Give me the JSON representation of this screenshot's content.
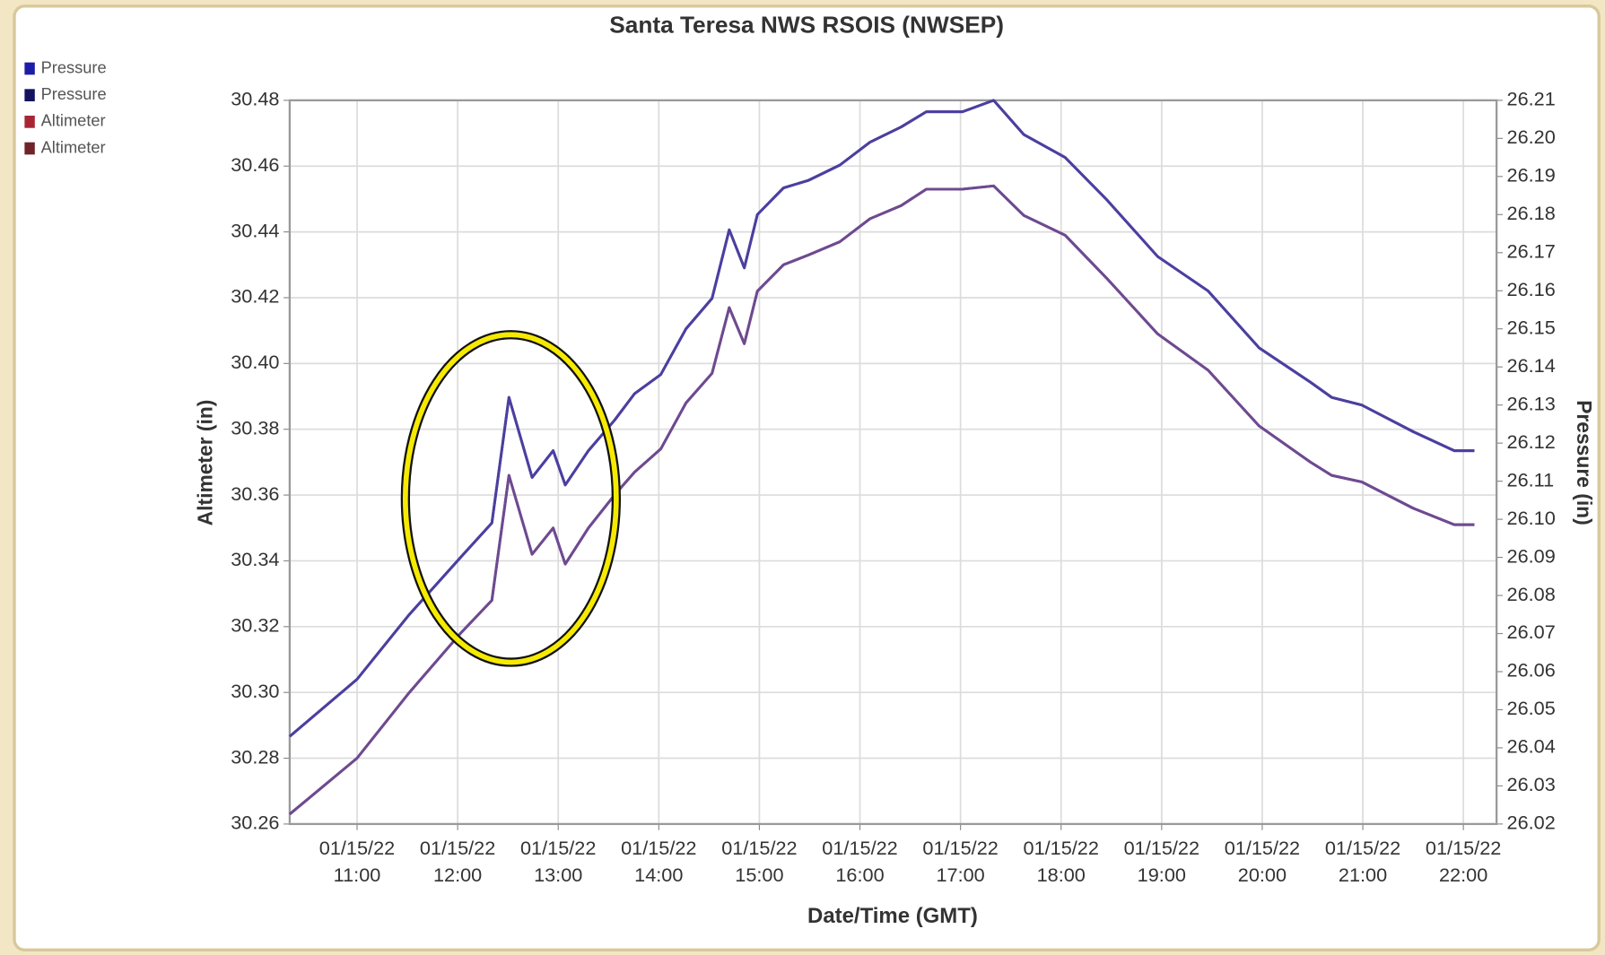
{
  "chart_data": {
    "type": "line",
    "title": "Santa Teresa NWS RSOIS (NWSEP)",
    "x_label": "Date/Time (GMT)",
    "y_label": "Altimeter (in)",
    "y2_label": "Pressure (in)",
    "x": [
      10.33,
      11.0,
      11.52,
      12.03,
      12.34,
      12.51,
      12.74,
      12.95,
      13.07,
      13.3,
      13.56,
      13.76,
      14.02,
      14.27,
      14.53,
      14.7,
      14.85,
      14.98,
      15.24,
      15.49,
      15.8,
      16.1,
      16.41,
      16.66,
      17.02,
      17.33,
      17.63,
      18.04,
      18.45,
      18.96,
      19.46,
      19.97,
      20.48,
      20.69,
      20.99,
      21.5,
      21.91,
      22.11
    ],
    "series": [
      {
        "name": "Pressure",
        "color": "#1c1ca8",
        "line_color": "#4b3fa0",
        "axis": "y2",
        "values": [
          26.043,
          26.058,
          26.075,
          26.09,
          26.099,
          26.132,
          26.111,
          26.118,
          26.109,
          26.118,
          26.126,
          26.133,
          26.138,
          26.15,
          26.158,
          26.176,
          26.166,
          26.18,
          26.187,
          26.189,
          26.193,
          26.199,
          26.203,
          26.207,
          26.207,
          26.21,
          26.201,
          26.195,
          26.184,
          26.169,
          26.16,
          26.145,
          26.136,
          26.132,
          26.13,
          26.123,
          26.118,
          26.118
        ]
      },
      {
        "name": "Pressure",
        "color": "#14145e",
        "line_color": "#4b3fa0",
        "axis": "y2",
        "values": [
          26.043,
          26.058,
          26.075,
          26.09,
          26.099,
          26.132,
          26.111,
          26.118,
          26.109,
          26.118,
          26.126,
          26.133,
          26.138,
          26.15,
          26.158,
          26.176,
          26.166,
          26.18,
          26.187,
          26.189,
          26.193,
          26.199,
          26.203,
          26.207,
          26.207,
          26.21,
          26.201,
          26.195,
          26.184,
          26.169,
          26.16,
          26.145,
          26.136,
          26.132,
          26.13,
          26.123,
          26.118,
          26.118
        ]
      },
      {
        "name": "Altimeter",
        "color": "#a82634",
        "line_color": "#6e4a90",
        "axis": "y",
        "values": [
          30.263,
          30.28,
          30.3,
          30.318,
          30.328,
          30.366,
          30.342,
          30.35,
          30.339,
          30.35,
          30.36,
          30.367,
          30.374,
          30.388,
          30.397,
          30.417,
          30.406,
          30.422,
          30.43,
          30.433,
          30.437,
          30.444,
          30.448,
          30.453,
          30.453,
          30.454,
          30.445,
          30.439,
          30.426,
          30.409,
          30.398,
          30.381,
          30.37,
          30.366,
          30.364,
          30.356,
          30.351,
          30.351
        ]
      },
      {
        "name": "Altimeter",
        "color": "#70242a",
        "line_color": "#6e4a90",
        "axis": "y",
        "values": [
          30.263,
          30.28,
          30.3,
          30.318,
          30.328,
          30.366,
          30.342,
          30.35,
          30.339,
          30.35,
          30.36,
          30.367,
          30.374,
          30.388,
          30.397,
          30.417,
          30.406,
          30.422,
          30.43,
          30.433,
          30.437,
          30.444,
          30.448,
          30.453,
          30.453,
          30.454,
          30.445,
          30.439,
          30.426,
          30.409,
          30.398,
          30.381,
          30.37,
          30.366,
          30.364,
          30.356,
          30.351,
          30.351
        ]
      }
    ],
    "xlim": [
      10.33,
      22.33
    ],
    "xticks": [
      {
        "value": 11,
        "label": "01/15/22 11:00"
      },
      {
        "value": 12,
        "label": "01/15/22 12:00"
      },
      {
        "value": 13,
        "label": "01/15/22 13:00"
      },
      {
        "value": 14,
        "label": "01/15/22 14:00"
      },
      {
        "value": 15,
        "label": "01/15/22 15:00"
      },
      {
        "value": 16,
        "label": "01/15/22 16:00"
      },
      {
        "value": 17,
        "label": "01/15/22 17:00"
      },
      {
        "value": 18,
        "label": "01/15/22 18:00"
      },
      {
        "value": 19,
        "label": "01/15/22 19:00"
      },
      {
        "value": 20,
        "label": "01/15/22 20:00"
      },
      {
        "value": 21,
        "label": "01/15/22 21:00"
      },
      {
        "value": 22,
        "label": "01/15/22 22:00"
      }
    ],
    "ylim": [
      30.26,
      30.48
    ],
    "yticks": [
      30.26,
      30.28,
      {
        "value": 30.3,
        "label": "30.30"
      },
      30.32,
      30.34,
      30.36,
      30.38,
      {
        "value": 30.4,
        "label": "30.40"
      },
      30.42,
      30.44,
      30.46,
      30.48
    ],
    "y2lim": [
      26.02,
      26.21
    ],
    "y2ticks": [
      26.02,
      26.03,
      26.04,
      26.05,
      26.06,
      26.07,
      26.08,
      26.09,
      {
        "value": 26.1,
        "label": "26.10"
      },
      26.11,
      26.12,
      26.13,
      26.14,
      26.15,
      26.16,
      26.17,
      26.18,
      26.19,
      {
        "value": 26.2,
        "label": "26.20"
      },
      26.21
    ],
    "grid": true,
    "legend": "top-left"
  }
}
